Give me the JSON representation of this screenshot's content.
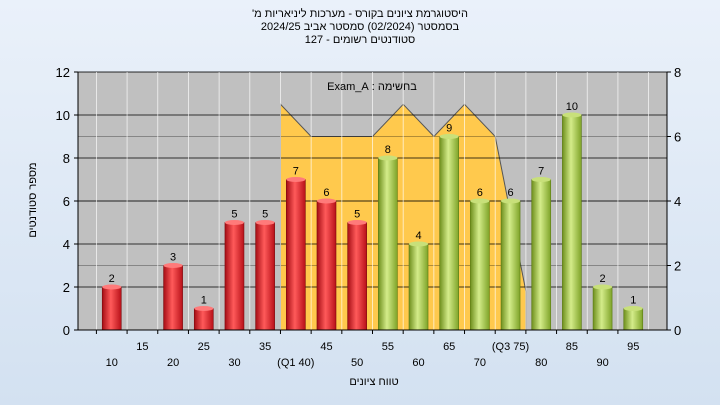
{
  "header": {
    "title_line1": "היסטוגרמת ציונים בקורס - מערכות ליניאריות מ'",
    "title_line2": "בסמסטר  (02/2024)  סמסטר אביב 2024/25",
    "title_line3": "סטודנטים רשומים - 127"
  },
  "chart_data": {
    "type": "bar",
    "xlabel": "טווח ציונים",
    "ylabel": "מספר סטודנטים",
    "annotation": "בחשימה : Exam_A",
    "ylim": [
      0,
      12
    ],
    "y_ticks": [
      0,
      2,
      4,
      6,
      8,
      10,
      12
    ],
    "y2lim": [
      0,
      8
    ],
    "y2_ticks": [
      0,
      2,
      4,
      6,
      8
    ],
    "grid": true,
    "categories": [
      "10",
      "15",
      "20",
      "25",
      "30",
      "35",
      "(Q1 40)",
      "45",
      "50",
      "55",
      "60",
      "65",
      "70",
      "(Q3 75)",
      "80",
      "85",
      "90",
      "95"
    ],
    "values": [
      2,
      0,
      3,
      1,
      5,
      5,
      7,
      6,
      5,
      8,
      4,
      9,
      6,
      6,
      7,
      10,
      2,
      1
    ],
    "value_labels": [
      "2",
      "",
      "3",
      "1",
      "5",
      "5",
      "7",
      "6",
      "5",
      "8",
      "4",
      "9",
      "6",
      "6",
      "7",
      "10",
      "2",
      "1"
    ],
    "bar_colors": [
      "#e02028",
      "#e02028",
      "#e02028",
      "#e02028",
      "#e02028",
      "#e02028",
      "#e02028",
      "#e02028",
      "#e02028",
      "#9bbf3a",
      "#9bbf3a",
      "#9bbf3a",
      "#9bbf3a",
      "#9bbf3a",
      "#9bbf3a",
      "#9bbf3a",
      "#9bbf3a",
      "#9bbf3a"
    ],
    "area_series": {
      "x_index": [
        6,
        6,
        7,
        8,
        9,
        10,
        11,
        12,
        13,
        14
      ],
      "values": [
        0,
        7,
        6,
        6,
        6,
        7,
        6,
        7,
        6,
        1.2
      ],
      "color": "#ffc94d"
    },
    "colors": {
      "plot_background": "#c0c0c0",
      "grid": "#000000",
      "fail_bar": "#e02028",
      "pass_bar": "#9bbf3a",
      "area": "#ffc94d"
    }
  }
}
